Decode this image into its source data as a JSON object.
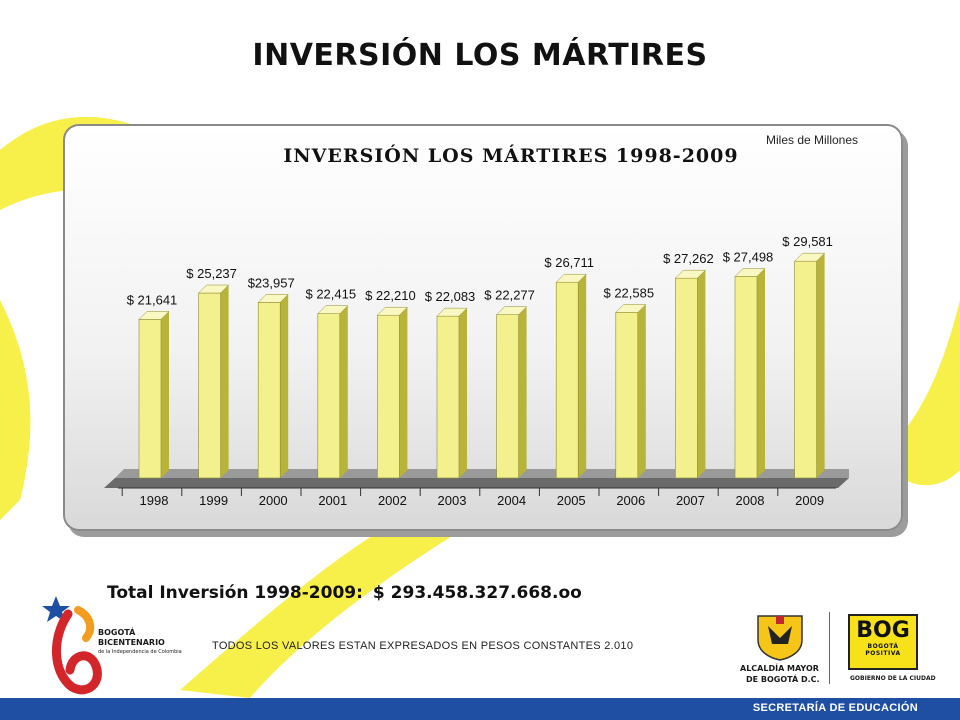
{
  "page": {
    "title": "INVERSIÓN LOS MÁRTIRES",
    "units": "Miles de Millones",
    "total_label": "Total Inversión 1998-2009:",
    "total_value": "$ 293.458.327.668.oo",
    "footnote": "TODOS LOS VALORES ESTAN EXPRESADOS EN PESOS CONSTANTES 2.010",
    "footer": "SECRETARÍA DE EDUCACIÓN"
  },
  "logos": {
    "bicentenario_line1": "BOGOTÁ",
    "bicentenario_line2": "BICENTENARIO",
    "bicentenario_line3": "de la Independencia de Colombia",
    "alcaldia_line1": "ALCALDÍA MAYOR",
    "alcaldia_line2": "DE BOGOTÁ D.C.",
    "bog_mark": "BOG",
    "bog_sub": "BOGOTÁ POSITIVA",
    "bog_caption": "GOBIERNO DE LA CIUDAD"
  },
  "colors": {
    "bar_front": "#f3f08e",
    "bar_side": "#b8b43a",
    "bar_top": "#faf8c2",
    "background_swirl": "#f7ef4a",
    "footer_bar": "#1f4fa3"
  },
  "chart_data": {
    "type": "bar",
    "title": "INVERSIÓN LOS MÁRTIRES 1998-2009",
    "categories": [
      "1998",
      "1999",
      "2000",
      "2001",
      "2002",
      "2003",
      "2004",
      "2005",
      "2006",
      "2007",
      "2008",
      "2009"
    ],
    "values": [
      21.641,
      25.237,
      23.957,
      22.415,
      22.21,
      22.083,
      22.277,
      26.711,
      22.585,
      27.262,
      27.498,
      29.581
    ],
    "data_labels": [
      "$ 21,641",
      "$ 25,237",
      "$23,957",
      "$ 22,415",
      "$ 22,210",
      "$ 22,083",
      "$ 22,277",
      "$ 26,711",
      "$ 22,585",
      "$ 27,262",
      "$ 27,498",
      "$ 29,581"
    ],
    "ylim": [
      0,
      30
    ],
    "grid": false,
    "legend": "none"
  }
}
